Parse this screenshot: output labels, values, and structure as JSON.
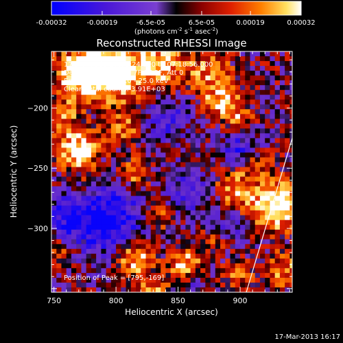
{
  "colorbar": {
    "ticks": [
      "-0.00032",
      "-0.00019",
      "-6.5e-05",
      "6.5e-05",
      "0.00019",
      "0.00032"
    ],
    "unit_prefix": "(photons cm",
    "unit_exp1": "-2",
    "unit_mid": " s",
    "unit_exp2": "-1",
    "unit_mid2": " asec",
    "unit_exp3": "-2",
    "unit_suffix": ")"
  },
  "chart_data": {
    "type": "heatmap",
    "title": "Reconstructed RHESSI Image",
    "xlabel": "Heliocentric X (arcsec)",
    "ylabel": "Heliocentric Y (arcsec)",
    "xlim": [
      748,
      942
    ],
    "ylim": [
      -353,
      -153
    ],
    "x_ticks": [
      750,
      800,
      850,
      900
    ],
    "y_ticks": [
      -200,
      -250,
      -300
    ],
    "colorbar_range": [
      -0.00032,
      0.00032
    ],
    "annotations": [
      "17-Mar-2013 07:15:24.000 to 07:18:56.000",
      "Detectors: 3F 4F 6F 7F 8F 9F, Att 0",
      "Energy Range: 12.0 - 25.0 keV",
      "Clean    Total counts: 3.91E+03"
    ],
    "peak_label": "Position of Peak = [795,-169]",
    "peak": [
      795,
      -169
    ],
    "limb_line": [
      [
        905,
        -353
      ],
      [
        942,
        -225
      ]
    ]
  },
  "footer": {
    "timestamp": "17-Mar-2013 16:17"
  }
}
